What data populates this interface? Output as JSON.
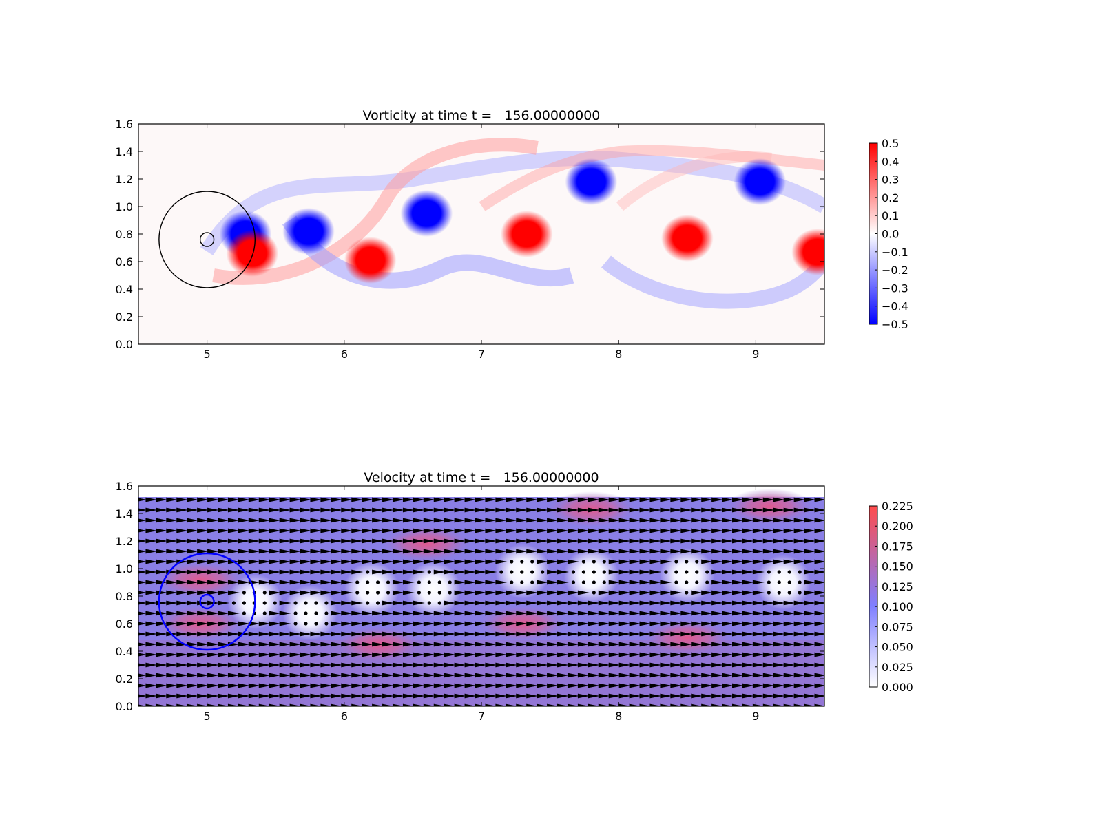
{
  "chart_data": [
    {
      "type": "heatmap",
      "title": "Vorticity at time t =   156.00000000",
      "xlabel": "",
      "ylabel": "",
      "xlim": [
        4.5,
        9.5
      ],
      "ylim": [
        0.0,
        1.6
      ],
      "xticks": [
        "5",
        "6",
        "7",
        "8",
        "9"
      ],
      "yticks": [
        "0.0",
        "0.2",
        "0.4",
        "0.6",
        "0.8",
        "1.0",
        "1.2",
        "1.4",
        "1.6"
      ],
      "colormap": "bwr",
      "colors": {
        "negative": "#0000ff",
        "zero": "#ffffff",
        "positive": "#ff0000"
      },
      "colorbar": {
        "range": [
          -0.5,
          0.5
        ],
        "ticks": [
          "0.5",
          "0.4",
          "0.3",
          "0.2",
          "0.1",
          "0.0",
          "−0.1",
          "−0.2",
          "−0.3",
          "−0.4",
          "−0.5"
        ]
      },
      "grid": false,
      "overlays": [
        {
          "shape": "circle",
          "center": [
            5.0,
            0.76
          ],
          "radius": 0.35,
          "color": "#000000"
        },
        {
          "shape": "circle",
          "center": [
            5.0,
            0.76
          ],
          "radius": 0.05,
          "color": "#000000"
        }
      ],
      "vortices": [
        {
          "x": 5.28,
          "y": 0.8,
          "sign": -1,
          "strength": 0.5
        },
        {
          "x": 5.33,
          "y": 0.66,
          "sign": 1,
          "strength": 0.5
        },
        {
          "x": 5.74,
          "y": 0.82,
          "sign": -1,
          "strength": 0.5
        },
        {
          "x": 6.19,
          "y": 0.61,
          "sign": 1,
          "strength": 0.5
        },
        {
          "x": 6.6,
          "y": 0.95,
          "sign": -1,
          "strength": 0.5
        },
        {
          "x": 7.33,
          "y": 0.8,
          "sign": 1,
          "strength": 0.5
        },
        {
          "x": 7.8,
          "y": 1.18,
          "sign": -1,
          "strength": 0.5
        },
        {
          "x": 8.5,
          "y": 0.77,
          "sign": 1,
          "strength": 0.5
        },
        {
          "x": 9.03,
          "y": 1.18,
          "sign": -1,
          "strength": 0.5
        },
        {
          "x": 9.45,
          "y": 0.67,
          "sign": 1,
          "strength": 0.5
        }
      ]
    },
    {
      "type": "heatmap",
      "title": "Velocity at time t =   156.00000000",
      "xlabel": "",
      "ylabel": "",
      "xlim": [
        4.5,
        9.5
      ],
      "ylim": [
        0.0,
        1.6
      ],
      "xticks": [
        "5",
        "6",
        "7",
        "8",
        "9"
      ],
      "yticks": [
        "0.0",
        "0.2",
        "0.4",
        "0.6",
        "0.8",
        "1.0",
        "1.2",
        "1.4",
        "1.6"
      ],
      "colormap": "white-blue-red",
      "colors": {
        "low": "#ffffff",
        "mid": "#7f7fff",
        "high": "#ff4c4c"
      },
      "colorbar": {
        "range": [
          0.0,
          0.225
        ],
        "ticks": [
          "0.225",
          "0.200",
          "0.175",
          "0.150",
          "0.125",
          "0.100",
          "0.075",
          "0.050",
          "0.025",
          "0.000"
        ]
      },
      "field_ymax": 1.52,
      "background_speed": 0.11,
      "arrow_color": "#000000",
      "grid": false,
      "overlays": [
        {
          "shape": "circle",
          "center": [
            5.0,
            0.76
          ],
          "radius": 0.35,
          "color": "#0000ff"
        },
        {
          "shape": "circle",
          "center": [
            5.0,
            0.76
          ],
          "radius": 0.05,
          "color": "#0000ff"
        }
      ],
      "slow_regions": [
        {
          "x": 5.35,
          "y": 0.76,
          "speed": 0.015
        },
        {
          "x": 5.75,
          "y": 0.68,
          "speed": 0.015
        },
        {
          "x": 6.2,
          "y": 0.85,
          "speed": 0.015
        },
        {
          "x": 6.65,
          "y": 0.85,
          "speed": 0.02
        },
        {
          "x": 7.3,
          "y": 0.98,
          "speed": 0.015
        },
        {
          "x": 7.8,
          "y": 0.95,
          "speed": 0.02
        },
        {
          "x": 8.5,
          "y": 0.95,
          "speed": 0.015
        },
        {
          "x": 9.2,
          "y": 0.9,
          "speed": 0.02
        }
      ],
      "fast_regions": [
        {
          "x": 4.95,
          "y": 0.92,
          "speed": 0.19
        },
        {
          "x": 4.95,
          "y": 0.6,
          "speed": 0.19
        },
        {
          "x": 6.25,
          "y": 0.45,
          "speed": 0.2
        },
        {
          "x": 6.6,
          "y": 1.18,
          "speed": 0.18
        },
        {
          "x": 7.3,
          "y": 0.6,
          "speed": 0.19
        },
        {
          "x": 7.8,
          "y": 1.43,
          "speed": 0.2
        },
        {
          "x": 8.5,
          "y": 0.5,
          "speed": 0.19
        },
        {
          "x": 9.1,
          "y": 1.45,
          "speed": 0.19
        }
      ]
    }
  ]
}
